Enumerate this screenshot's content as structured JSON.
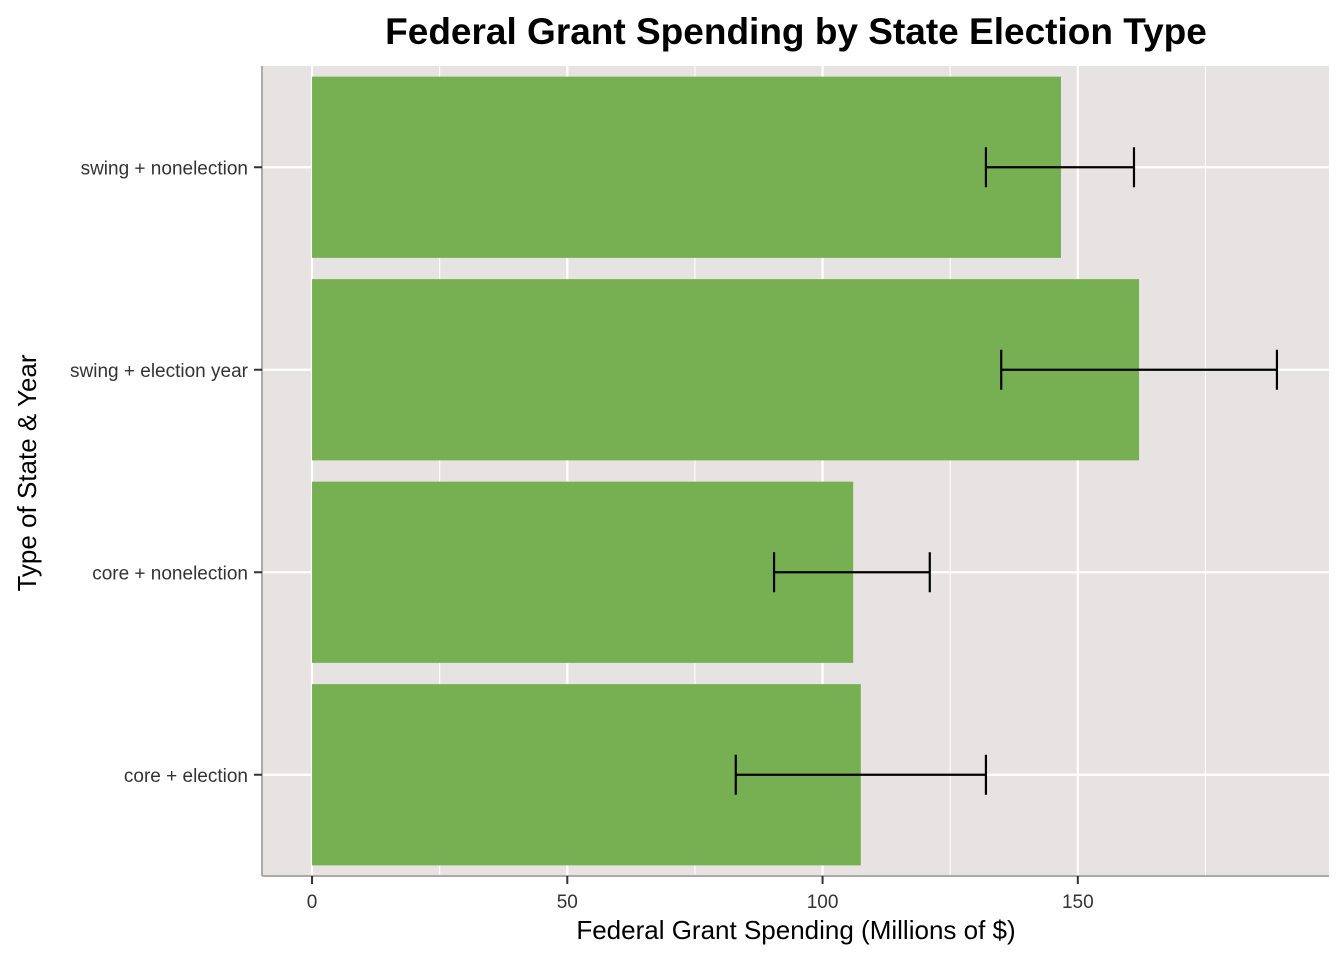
{
  "chart_data": {
    "type": "bar",
    "orientation": "horizontal",
    "title": "Federal Grant Spending by State Election Type",
    "xlabel": "Federal Grant Spending (Millions of $)",
    "ylabel": "Type of State & Year",
    "categories": [
      "core + election",
      "core + nonelection",
      "swing + election year",
      "swing + nonelection"
    ],
    "values": [
      107.5,
      106.0,
      162.0,
      146.7
    ],
    "error_low": [
      83.0,
      90.5,
      135.0,
      132.0
    ],
    "error_high": [
      132.0,
      121.0,
      189.0,
      161.0
    ],
    "xlim": [
      -9.8,
      199.2
    ],
    "x_ticks": [
      0,
      50,
      100,
      150
    ],
    "x_minor_ticks": [
      25,
      75,
      125,
      175
    ],
    "grid": true,
    "legend": "none",
    "colors": {
      "bar": "#77b052",
      "panel": "#e8e3e3",
      "grid": "#ffffff",
      "errorbar": "#000000",
      "axis_line": "#aaaaaa"
    }
  }
}
